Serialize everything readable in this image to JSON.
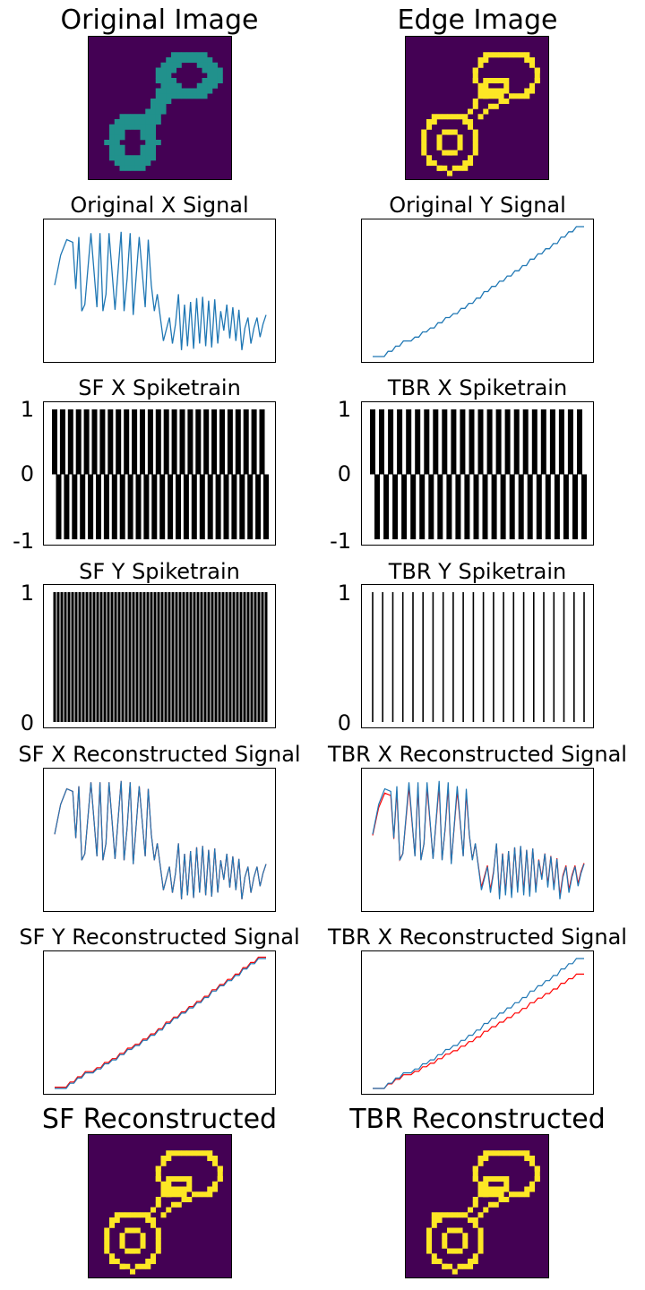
{
  "titles": {
    "original_image": "Original Image",
    "edge_image": "Edge Image",
    "orig_x": "Original X Signal",
    "orig_y": "Original Y Signal",
    "sf_x_spike": "SF X Spiketrain",
    "tbr_x_spike": "TBR X Spiketrain",
    "sf_y_spike": "SF Y Spiketrain",
    "tbr_y_spike": "TBR Y Spiketrain",
    "sf_x_recon": "SF X Reconstructed Signal",
    "tbr_x_recon": "TBR X Reconstructed Signal",
    "sf_y_recon": "SF Y Reconstructed Signal",
    "tbr_y_recon": "TBR X Reconstructed Signal",
    "sf_reconstructed": "SF Reconstructed",
    "tbr_reconstructed": "TBR Reconstructed"
  },
  "ticks": {
    "bipolar": [
      "1",
      "0",
      "-1"
    ],
    "unipolar": [
      "1",
      "0"
    ]
  },
  "colors": {
    "image_bg": "#440154",
    "image_fg": "#fde725",
    "image_mid": "#21918c",
    "signal": "#1f77b4",
    "reconstruction": "#ff0000",
    "spike": "#000000"
  },
  "chart_data": [
    {
      "name": "Original X Signal",
      "type": "line",
      "x": [
        0,
        2,
        4,
        6,
        7,
        8,
        9,
        10,
        12,
        14,
        15,
        16,
        17,
        18,
        20,
        22,
        23,
        24,
        25,
        26,
        28,
        30,
        31,
        32,
        33,
        34,
        36,
        38,
        39,
        40,
        41,
        42,
        43,
        44,
        45,
        46,
        47,
        48,
        49,
        50,
        51,
        52,
        53,
        54,
        55,
        56,
        57,
        58,
        59,
        60,
        61,
        62,
        63,
        64,
        65,
        66,
        67,
        68,
        69,
        70
      ],
      "values": [
        0.55,
        0.78,
        0.9,
        0.88,
        0.52,
        0.92,
        0.35,
        0.4,
        0.95,
        0.38,
        0.95,
        0.35,
        0.48,
        0.95,
        0.36,
        0.96,
        0.35,
        0.6,
        0.95,
        0.32,
        0.92,
        0.38,
        0.9,
        0.55,
        0.35,
        0.48,
        0.12,
        0.3,
        0.1,
        0.25,
        0.48,
        0.05,
        0.4,
        0.08,
        0.42,
        0.06,
        0.45,
        0.1,
        0.46,
        0.08,
        0.43,
        0.07,
        0.44,
        0.1,
        0.35,
        0.2,
        0.4,
        0.14,
        0.38,
        0.12,
        0.36,
        0.05,
        0.22,
        0.3,
        0.1,
        0.22,
        0.3,
        0.15,
        0.25,
        0.32
      ]
    },
    {
      "name": "Original Y Signal",
      "type": "line",
      "values": [
        0,
        0,
        0,
        0,
        0.04,
        0.04,
        0.08,
        0.08,
        0.12,
        0.12,
        0.12,
        0.15,
        0.15,
        0.19,
        0.19,
        0.22,
        0.22,
        0.26,
        0.26,
        0.3,
        0.3,
        0.33,
        0.33,
        0.37,
        0.37,
        0.41,
        0.41,
        0.45,
        0.45,
        0.5,
        0.5,
        0.54,
        0.54,
        0.58,
        0.58,
        0.62,
        0.62,
        0.66,
        0.66,
        0.7,
        0.7,
        0.75,
        0.75,
        0.79,
        0.79,
        0.83,
        0.83,
        0.87,
        0.87,
        0.92,
        0.92,
        0.96,
        0.96,
        1,
        1,
        1
      ]
    },
    {
      "name": "SF X Spiketrain",
      "type": "bar",
      "ylim": [
        -1,
        1
      ],
      "spikes": 54
    },
    {
      "name": "TBR X Spiketrain",
      "type": "bar",
      "ylim": [
        -1,
        1
      ],
      "spikes": 48
    },
    {
      "name": "SF Y Spiketrain",
      "type": "bar",
      "ylim": [
        0,
        1
      ],
      "spikes": 60
    },
    {
      "name": "TBR Y Spiketrain",
      "type": "bar",
      "ylim": [
        0,
        1
      ],
      "spikes": 22
    }
  ]
}
